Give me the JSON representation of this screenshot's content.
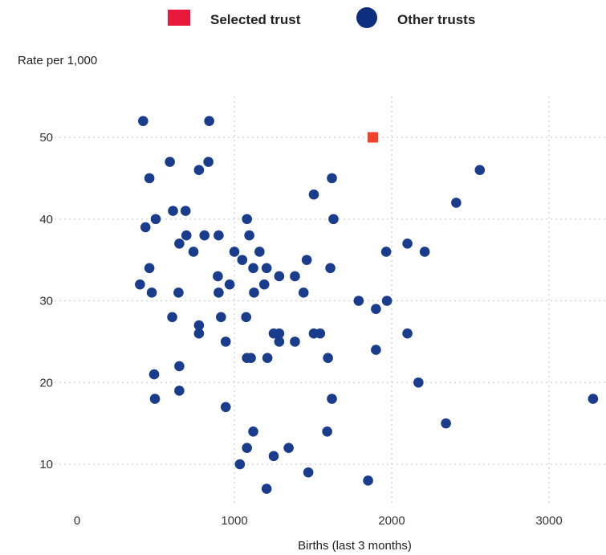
{
  "chart_data": {
    "type": "scatter",
    "title": "",
    "xlabel": "Births (last 3 months)",
    "ylabel": "Rate per 1,000",
    "xlim": [
      0,
      3300
    ],
    "ylim": [
      5,
      55
    ],
    "x_ticks": [
      0,
      1000,
      2000,
      3000
    ],
    "y_ticks": [
      10,
      20,
      30,
      40,
      50
    ],
    "grid": true,
    "legend_position": "top",
    "legend": [
      {
        "label": "Selected trust",
        "marker": "square",
        "color": "#e8193c"
      },
      {
        "label": "Other trusts",
        "marker": "circle",
        "color": "#0d2f7e"
      }
    ],
    "series": [
      {
        "name": "Other trusts",
        "color": "#1a3c8c",
        "points": [
          [
            420,
            52
          ],
          [
            840,
            52
          ],
          [
            590,
            47
          ],
          [
            835,
            47
          ],
          [
            775,
            46
          ],
          [
            460,
            45
          ],
          [
            610,
            41
          ],
          [
            690,
            41
          ],
          [
            500,
            40
          ],
          [
            1080,
            40
          ],
          [
            435,
            39
          ],
          [
            695,
            38
          ],
          [
            810,
            38
          ],
          [
            900,
            38
          ],
          [
            1095,
            38
          ],
          [
            650,
            37
          ],
          [
            1000,
            36
          ],
          [
            1160,
            36
          ],
          [
            740,
            36
          ],
          [
            1050,
            35
          ],
          [
            1460,
            35
          ],
          [
            460,
            34
          ],
          [
            1120,
            34
          ],
          [
            1205,
            34
          ],
          [
            1610,
            34
          ],
          [
            895,
            33
          ],
          [
            1285,
            33
          ],
          [
            1385,
            33
          ],
          [
            400,
            32
          ],
          [
            970,
            32
          ],
          [
            1190,
            32
          ],
          [
            475,
            31
          ],
          [
            645,
            31
          ],
          [
            900,
            31
          ],
          [
            1125,
            31
          ],
          [
            1440,
            31
          ],
          [
            1790,
            30
          ],
          [
            1970,
            30
          ],
          [
            1900,
            29
          ],
          [
            605,
            28
          ],
          [
            915,
            28
          ],
          [
            1075,
            28
          ],
          [
            775,
            27
          ],
          [
            775,
            26
          ],
          [
            1250,
            26
          ],
          [
            1285,
            26
          ],
          [
            1505,
            26
          ],
          [
            1545,
            26
          ],
          [
            945,
            25
          ],
          [
            1285,
            25
          ],
          [
            1385,
            25
          ],
          [
            1080,
            23
          ],
          [
            1105,
            23
          ],
          [
            1210,
            23
          ],
          [
            1595,
            23
          ],
          [
            1900,
            24
          ],
          [
            650,
            22
          ],
          [
            490,
            21
          ],
          [
            495,
            18
          ],
          [
            650,
            19
          ],
          [
            945,
            17
          ],
          [
            1120,
            14
          ],
          [
            1080,
            12
          ],
          [
            1345,
            12
          ],
          [
            1035,
            10
          ],
          [
            1250,
            11
          ],
          [
            1470,
            9
          ],
          [
            1205,
            7
          ],
          [
            1850,
            8
          ],
          [
            1590,
            14
          ],
          [
            1620,
            18
          ],
          [
            1965,
            36
          ],
          [
            2100,
            37
          ],
          [
            2210,
            36
          ],
          [
            2100,
            26
          ],
          [
            2170,
            20
          ],
          [
            2345,
            15
          ],
          [
            3280,
            18
          ],
          [
            2410,
            42
          ],
          [
            2560,
            46
          ],
          [
            1620,
            45
          ],
          [
            1630,
            40
          ],
          [
            1505,
            43
          ]
        ]
      },
      {
        "name": "Selected trust",
        "color": "#f0432c",
        "points": [
          [
            1880,
            50
          ]
        ]
      }
    ]
  }
}
